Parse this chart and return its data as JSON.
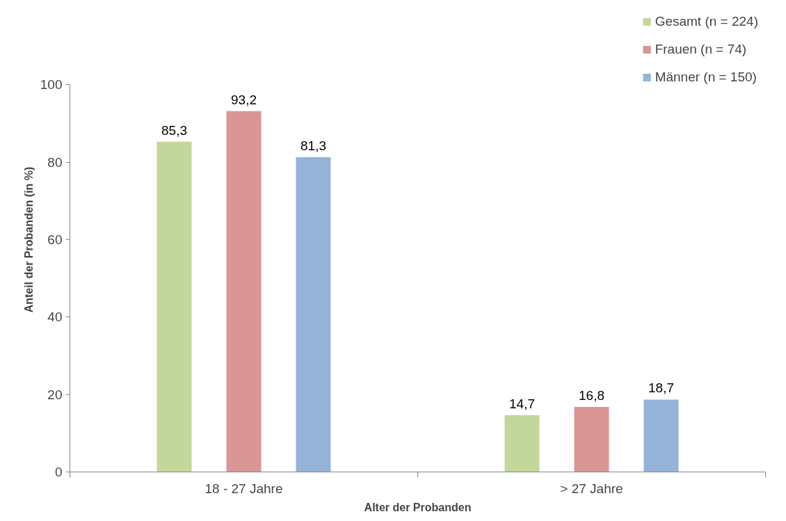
{
  "chart_data": {
    "type": "bar",
    "xlabel": "Alter der Probanden",
    "ylabel": "Anteil der Probanden (in %)",
    "categories": [
      "18 - 27 Jahre",
      "> 27 Jahre"
    ],
    "series": [
      {
        "name": "Gesamt (n = 224)",
        "color": "#c3d69b",
        "values": [
          85.3,
          14.7
        ],
        "value_labels": [
          "85,3",
          "14,7"
        ]
      },
      {
        "name": "Frauen (n = 74)",
        "color": "#d99694",
        "values": [
          93.2,
          16.8
        ],
        "value_labels": [
          "93,2",
          "16,8"
        ]
      },
      {
        "name": "Männer (n = 150)",
        "color": "#95b3d7",
        "values": [
          81.3,
          18.7
        ],
        "value_labels": [
          "81,3",
          "18,7"
        ]
      }
    ],
    "ylim": [
      0,
      100
    ],
    "yticks": [
      0,
      20,
      40,
      60,
      80,
      100
    ],
    "grid": false,
    "legend": "top right"
  }
}
